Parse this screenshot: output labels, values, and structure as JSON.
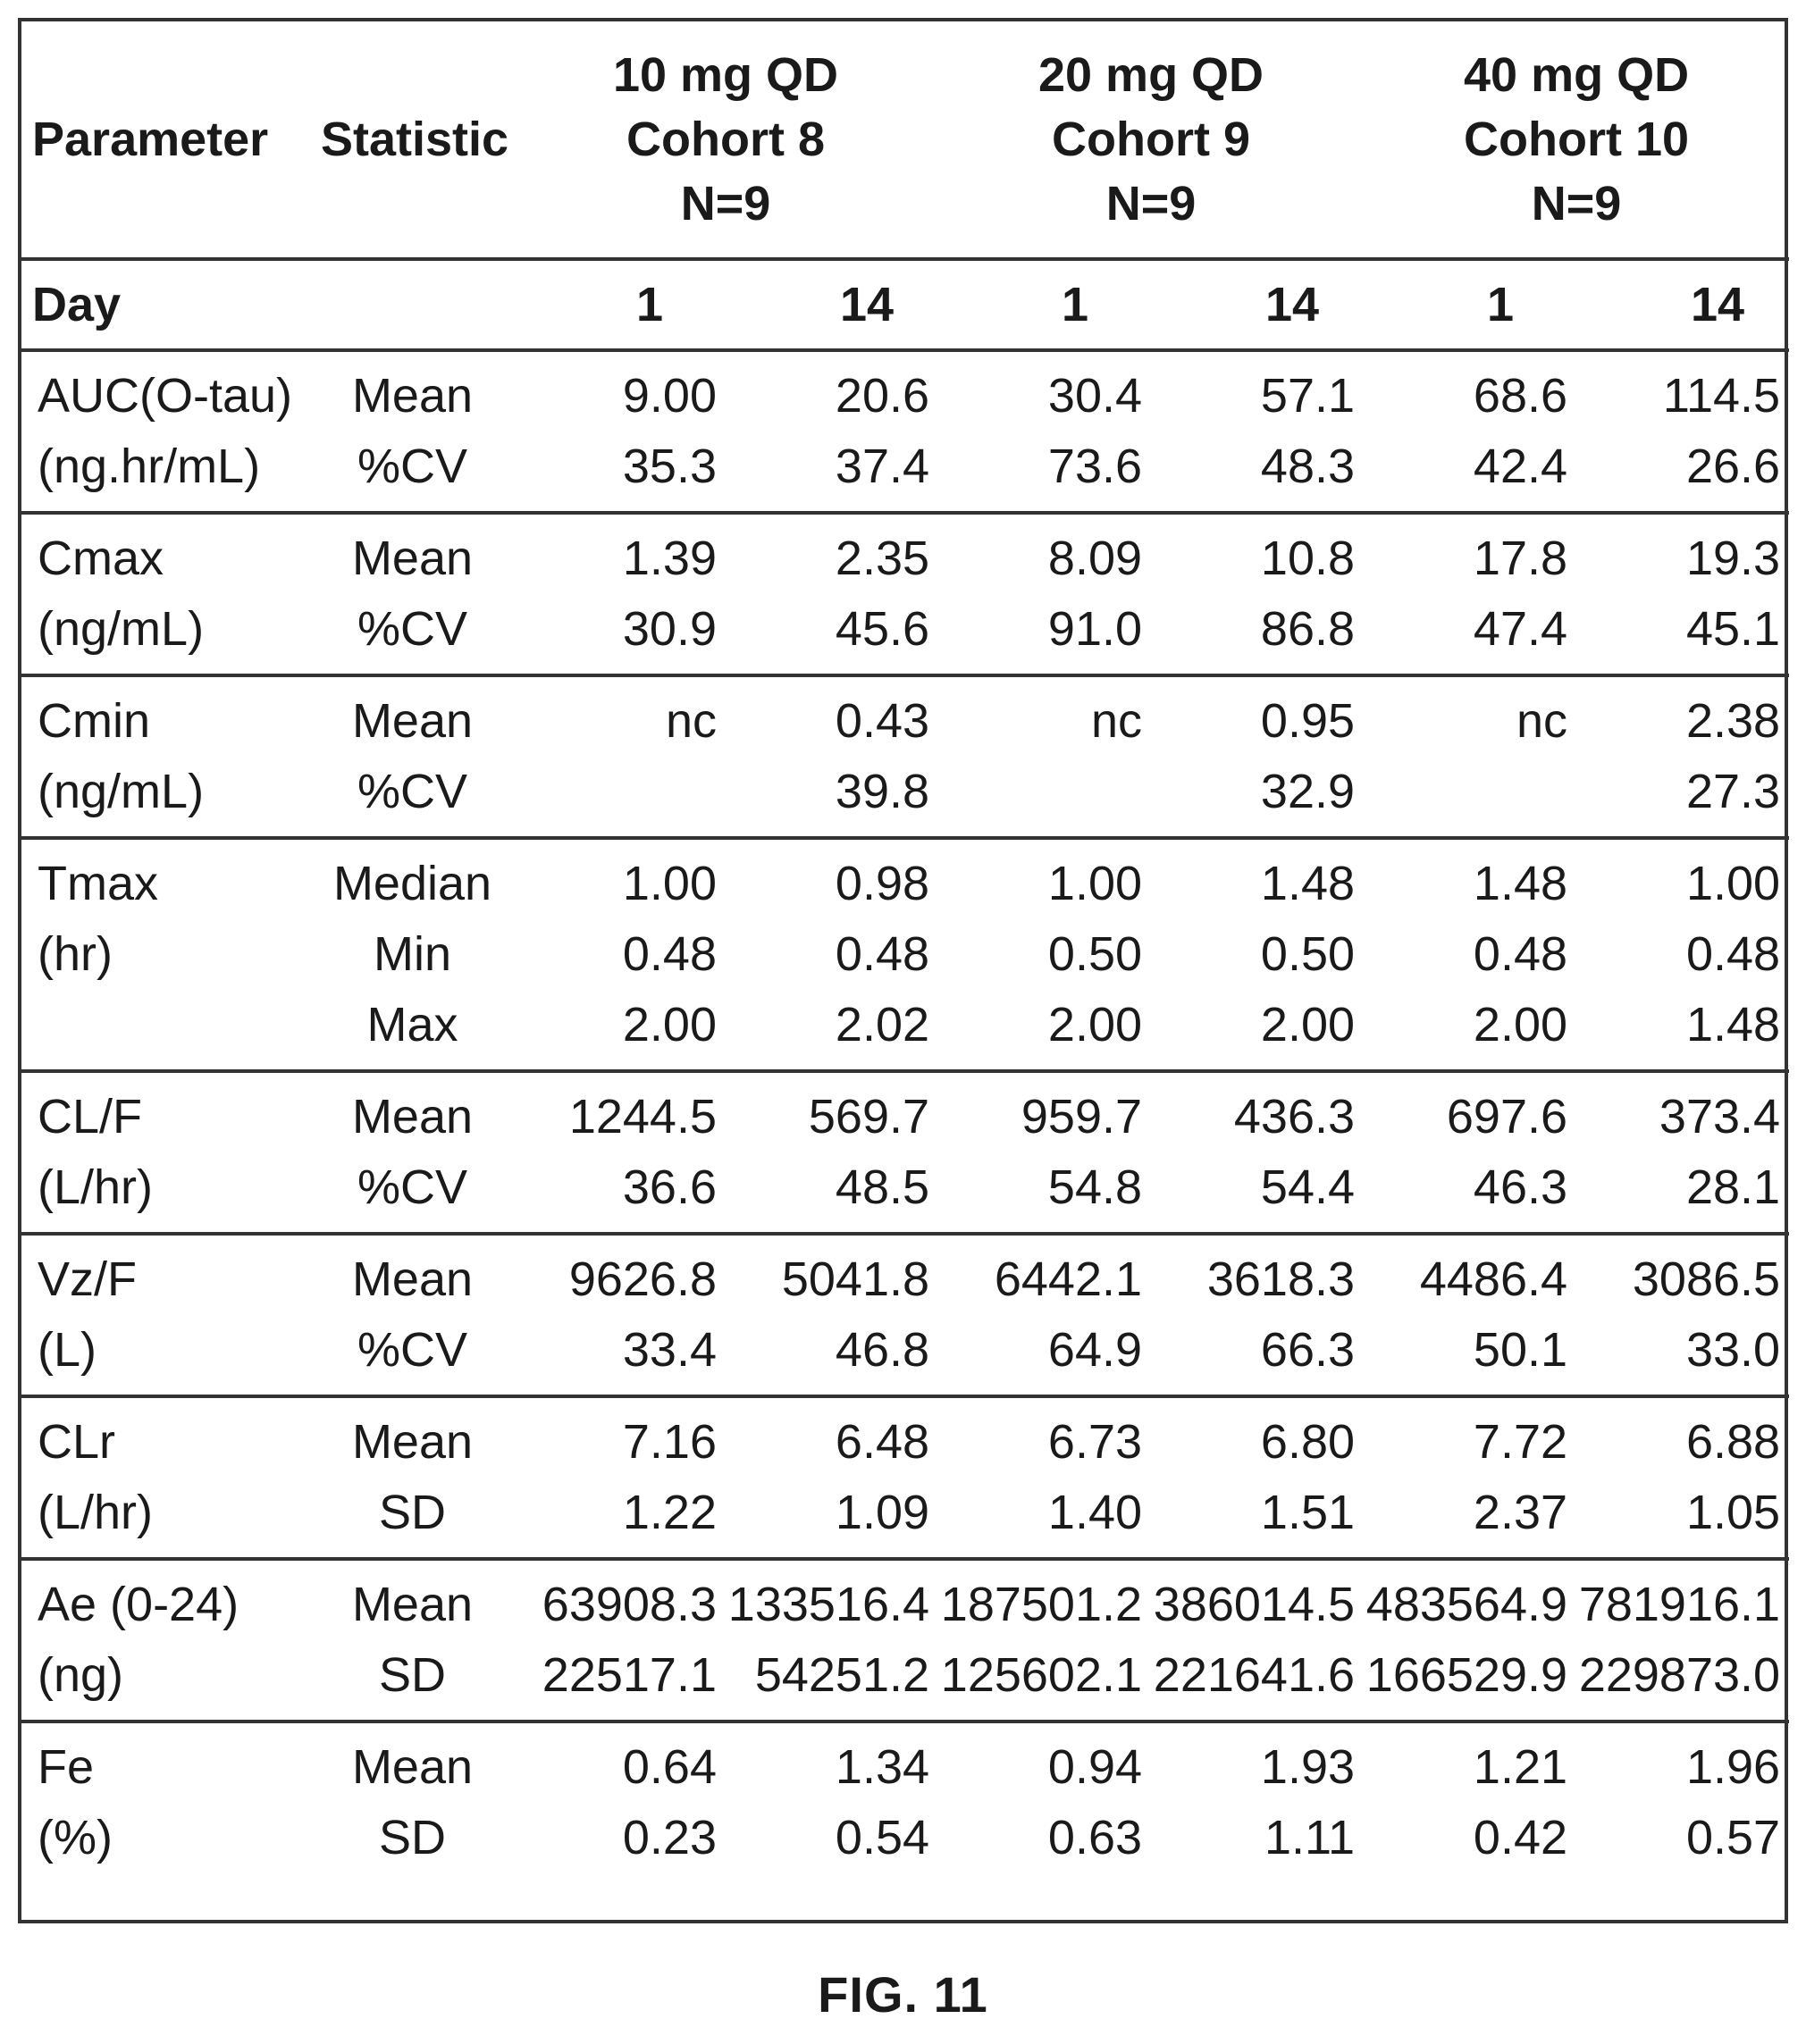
{
  "header": {
    "parameter": "Parameter",
    "statistic": "Statistic",
    "groups": [
      {
        "dose": "10 mg QD",
        "cohort": "Cohort 8",
        "n": "N=9"
      },
      {
        "dose": "20 mg QD",
        "cohort": "Cohort 9",
        "n": "N=9"
      },
      {
        "dose": "40 mg QD",
        "cohort": "Cohort 10",
        "n": "N=9"
      }
    ],
    "day_label": "Day",
    "days": [
      "1",
      "14",
      "1",
      "14",
      "1",
      "14"
    ]
  },
  "rows": [
    {
      "param": [
        "AUC(O-tau)",
        "(ng.hr/mL)"
      ],
      "stats": [
        "Mean",
        "%CV"
      ],
      "values": [
        [
          "9.00",
          "35.3"
        ],
        [
          "20.6",
          "37.4"
        ],
        [
          "30.4",
          "73.6"
        ],
        [
          "57.1",
          "48.3"
        ],
        [
          "68.6",
          "42.4"
        ],
        [
          "114.5",
          "26.6"
        ]
      ]
    },
    {
      "param": [
        "Cmax",
        "(ng/mL)"
      ],
      "stats": [
        "Mean",
        "%CV"
      ],
      "values": [
        [
          "1.39",
          "30.9"
        ],
        [
          "2.35",
          "45.6"
        ],
        [
          "8.09",
          "91.0"
        ],
        [
          "10.8",
          "86.8"
        ],
        [
          "17.8",
          "47.4"
        ],
        [
          "19.3",
          "45.1"
        ]
      ]
    },
    {
      "param": [
        "Cmin",
        "(ng/mL)"
      ],
      "stats": [
        "Mean",
        "%CV"
      ],
      "values": [
        [
          "nc",
          ""
        ],
        [
          "0.43",
          "39.8"
        ],
        [
          "nc",
          ""
        ],
        [
          "0.95",
          "32.9"
        ],
        [
          "nc",
          ""
        ],
        [
          "2.38",
          "27.3"
        ]
      ]
    },
    {
      "param": [
        "Tmax",
        "(hr)"
      ],
      "stats": [
        "Median",
        "Min",
        "Max"
      ],
      "values": [
        [
          "1.00",
          "0.48",
          "2.00"
        ],
        [
          "0.98",
          "0.48",
          "2.02"
        ],
        [
          "1.00",
          "0.50",
          "2.00"
        ],
        [
          "1.48",
          "0.50",
          "2.00"
        ],
        [
          "1.48",
          "0.48",
          "2.00"
        ],
        [
          "1.00",
          "0.48",
          "1.48"
        ]
      ]
    },
    {
      "param": [
        "CL/F",
        "(L/hr)"
      ],
      "stats": [
        "Mean",
        "%CV"
      ],
      "values": [
        [
          "1244.5",
          "36.6"
        ],
        [
          "569.7",
          "48.5"
        ],
        [
          "959.7",
          "54.8"
        ],
        [
          "436.3",
          "54.4"
        ],
        [
          "697.6",
          "46.3"
        ],
        [
          "373.4",
          "28.1"
        ]
      ]
    },
    {
      "param": [
        "Vz/F",
        "(L)"
      ],
      "stats": [
        "Mean",
        "%CV"
      ],
      "values": [
        [
          "9626.8",
          "33.4"
        ],
        [
          "5041.8",
          "46.8"
        ],
        [
          "6442.1",
          "64.9"
        ],
        [
          "3618.3",
          "66.3"
        ],
        [
          "4486.4",
          "50.1"
        ],
        [
          "3086.5",
          "33.0"
        ]
      ]
    },
    {
      "param": [
        "CLr",
        "(L/hr)"
      ],
      "stats": [
        "Mean",
        "SD"
      ],
      "values": [
        [
          "7.16",
          "1.22"
        ],
        [
          "6.48",
          "1.09"
        ],
        [
          "6.73",
          "1.40"
        ],
        [
          "6.80",
          "1.51"
        ],
        [
          "7.72",
          "2.37"
        ],
        [
          "6.88",
          "1.05"
        ]
      ]
    },
    {
      "param": [
        "Ae (0-24)",
        "(ng)"
      ],
      "stats": [
        "Mean",
        "SD"
      ],
      "values": [
        [
          "63908.3",
          "22517.1"
        ],
        [
          "133516.4",
          "54251.2"
        ],
        [
          "187501.2",
          "125602.1"
        ],
        [
          "386014.5",
          "221641.6"
        ],
        [
          "483564.9",
          "166529.9"
        ],
        [
          "781916.1",
          "229873.0"
        ]
      ]
    },
    {
      "param": [
        "Fe",
        "(%)"
      ],
      "stats": [
        "Mean",
        "SD"
      ],
      "values": [
        [
          "0.64",
          "0.23"
        ],
        [
          "1.34",
          "0.54"
        ],
        [
          "0.94",
          "0.63"
        ],
        [
          "1.93",
          "1.11"
        ],
        [
          "1.21",
          "0.42"
        ],
        [
          "1.96",
          "0.57"
        ]
      ]
    }
  ],
  "figure_label": "FIG. 11"
}
